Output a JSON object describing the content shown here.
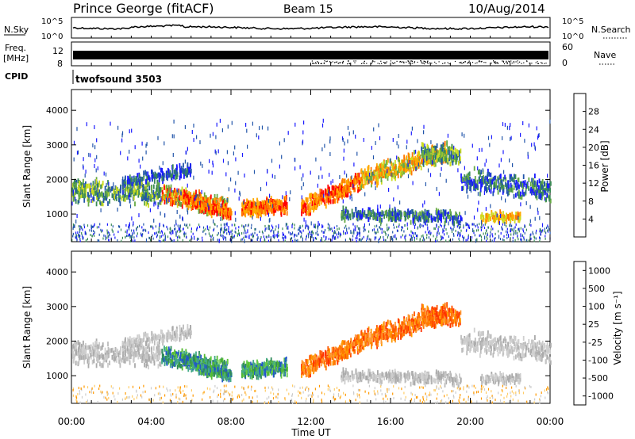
{
  "header": {
    "station": "Prince George (fitACF)",
    "beam": "Beam 15",
    "date": "10/Aug/2014"
  },
  "labels": {
    "nsky": "N.Sky",
    "nsearch": "N.Search",
    "freq_top": "Freq.",
    "freq_unit": "[MHz]",
    "nave": "Nave",
    "cpid": "CPID",
    "cpid_value": "twofsound 3503",
    "nsky_ticks": [
      "10^5",
      "10^0"
    ],
    "nsearch_ticks": [
      "10^5",
      "10^0"
    ],
    "freq_ticks": [
      "12",
      "8"
    ],
    "nave_ticks": [
      "60",
      "0"
    ]
  },
  "colors": {
    "power": [
      "#1a1aff",
      "#2255aa",
      "#3a8a55",
      "#66aa44",
      "#ccdd22",
      "#ffaa00",
      "#ff7700",
      "#ff0000"
    ],
    "velocity": [
      "#ff0000",
      "#ff5500",
      "#ff9900",
      "#ffcc66",
      "#cccccc",
      "#55bb33",
      "#44aa88",
      "#2255cc"
    ]
  },
  "chart_data": [
    {
      "type": "heatmap",
      "name": "power",
      "xlabel": "",
      "ylabel": "Slant Range [km]",
      "xlim": [
        0,
        24
      ],
      "ylim": [
        200,
        4600
      ],
      "y_ticks": [
        1000,
        2000,
        3000,
        4000
      ],
      "colorbar_label": "Power [dB]",
      "colorbar_ticks": [
        "4",
        "8",
        "12",
        "16",
        "20",
        "24",
        "28"
      ]
    },
    {
      "type": "heatmap",
      "name": "velocity",
      "xlabel": "Time UT",
      "ylabel": "Slant Range [km]",
      "xlim": [
        0,
        24
      ],
      "ylim": [
        200,
        4600
      ],
      "y_ticks": [
        1000,
        2000,
        3000,
        4000
      ],
      "x_tick_labels": [
        "00:00",
        "04:00",
        "08:00",
        "12:00",
        "16:00",
        "20:00",
        "00:00"
      ],
      "colorbar_label": "Velocity [m s⁻¹]",
      "colorbar_ticks": [
        "-1000",
        "-500",
        "-100",
        "-25",
        "25",
        "100",
        "500",
        "1000"
      ]
    }
  ]
}
